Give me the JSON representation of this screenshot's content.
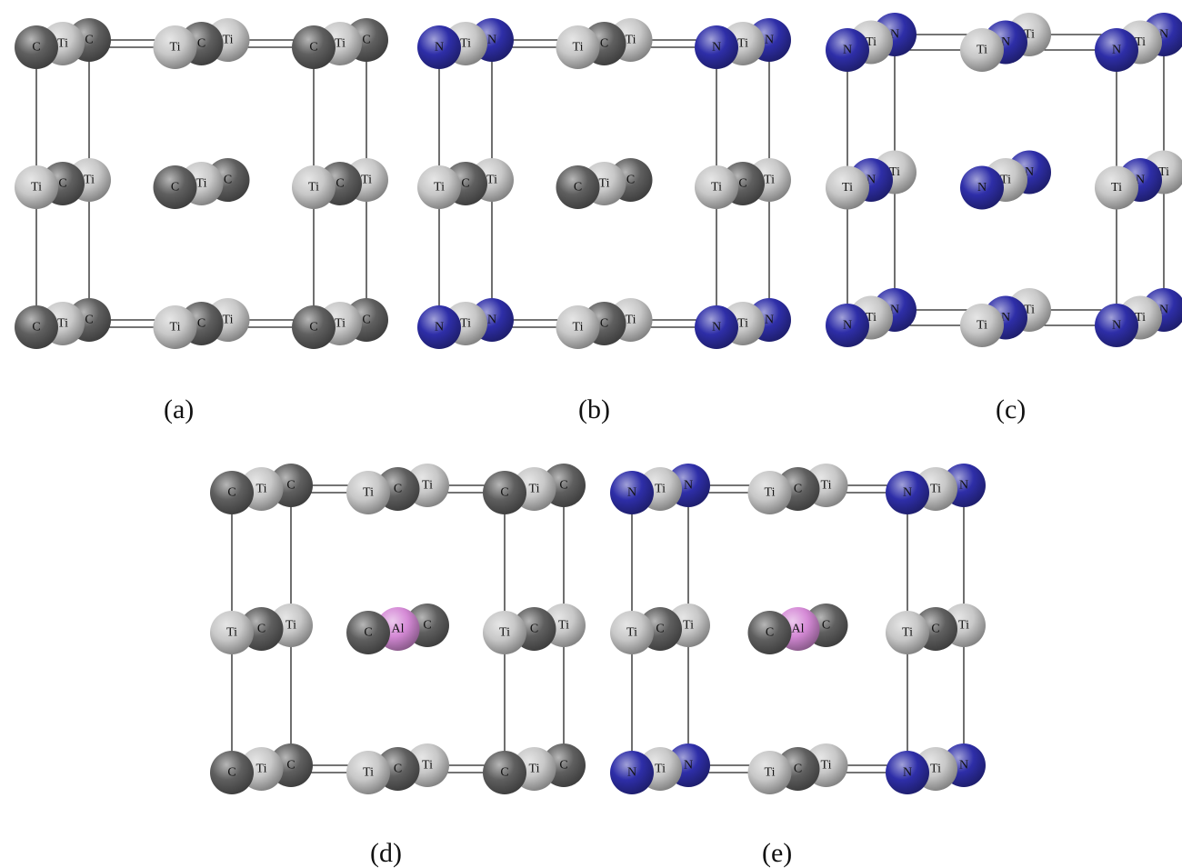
{
  "figure": {
    "panels": [
      {
        "caption": "(a)",
        "grid": [
          [
            "C",
            "Ti",
            "C",
            "Ti",
            "C",
            "Ti",
            "C",
            "Ti",
            "C"
          ],
          [
            "Ti",
            "C",
            "Ti",
            "C",
            "Ti",
            "C",
            "Ti",
            "C",
            "Ti"
          ],
          [
            "C",
            "Ti",
            "C",
            "Ti",
            "C",
            "Ti",
            "C",
            "Ti",
            "C"
          ]
        ],
        "rotated": false
      },
      {
        "caption": "(b)",
        "grid": [
          [
            "N",
            "Ti",
            "N",
            "Ti",
            "C",
            "Ti",
            "N",
            "Ti",
            "N"
          ],
          [
            "Ti",
            "C",
            "Ti",
            "C",
            "Ti",
            "C",
            "Ti",
            "C",
            "Ti"
          ],
          [
            "N",
            "Ti",
            "N",
            "Ti",
            "C",
            "Ti",
            "N",
            "Ti",
            "N"
          ]
        ],
        "rotated": false
      },
      {
        "caption": "(c)",
        "grid": [
          [
            "N",
            "Ti",
            "N",
            "Ti",
            "N",
            "Ti",
            "N",
            "Ti",
            "N"
          ],
          [
            "Ti",
            "N",
            "Ti",
            "N",
            "Ti",
            "N",
            "Ti",
            "N",
            "Ti"
          ],
          [
            "N",
            "Ti",
            "N",
            "Ti",
            "N",
            "Ti",
            "N",
            "Ti",
            "N"
          ]
        ],
        "rotated": true
      },
      {
        "caption": "(d)",
        "grid": [
          [
            "C",
            "Ti",
            "C",
            "Ti",
            "C",
            "Ti",
            "C",
            "Ti",
            "C"
          ],
          [
            "Ti",
            "C",
            "Ti",
            "C",
            "Al",
            "C",
            "Ti",
            "C",
            "Ti"
          ],
          [
            "C",
            "Ti",
            "C",
            "Ti",
            "C",
            "Ti",
            "C",
            "Ti",
            "C"
          ]
        ],
        "rotated": false
      },
      {
        "caption": "(e)",
        "grid": [
          [
            "N",
            "Ti",
            "N",
            "Ti",
            "C",
            "Ti",
            "N",
            "Ti",
            "N"
          ],
          [
            "Ti",
            "C",
            "Ti",
            "C",
            "Al",
            "C",
            "Ti",
            "C",
            "Ti"
          ],
          [
            "N",
            "Ti",
            "N",
            "Ti",
            "C",
            "Ti",
            "N",
            "Ti",
            "N"
          ]
        ],
        "rotated": false
      }
    ],
    "element_colors": {
      "C": "#5f5f5f",
      "Ti": "#c8c8c8",
      "N": "#2e2ea8",
      "Al": "#d58ad6"
    }
  }
}
